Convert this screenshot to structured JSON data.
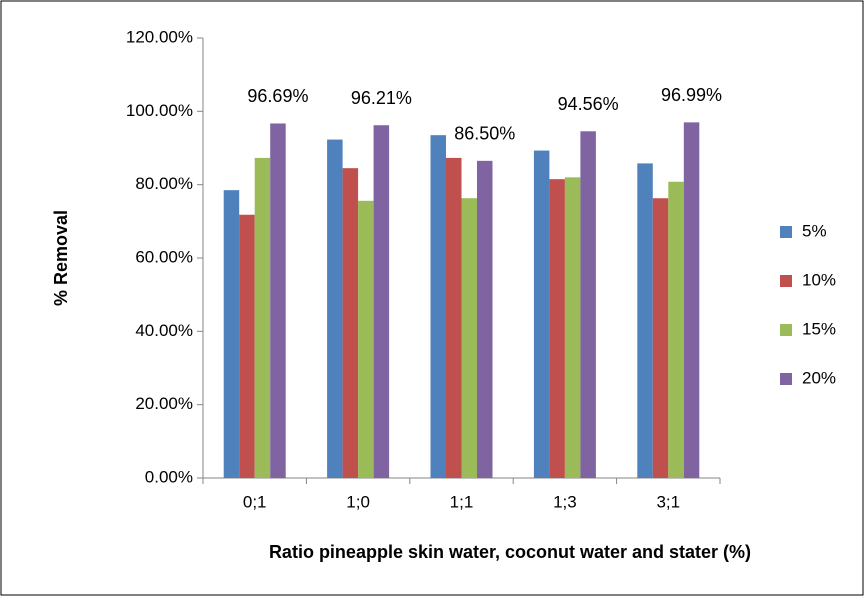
{
  "chart_data": {
    "type": "bar",
    "x_label": "Ratio pineapple skin water, coconut water and stater  (%)",
    "y_label": "% Removal",
    "categories": [
      "0;1",
      "1;0",
      "1;1",
      "1;3",
      "3;1"
    ],
    "series": [
      {
        "name": "5%",
        "color": "#4f81bd",
        "values": [
          78.5,
          92.3,
          93.5,
          89.3,
          85.8
        ]
      },
      {
        "name": "10%",
        "color": "#c0504d",
        "values": [
          71.8,
          84.5,
          87.3,
          81.5,
          76.3
        ]
      },
      {
        "name": "15%",
        "color": "#9bbb59",
        "values": [
          87.3,
          75.6,
          76.3,
          82.0,
          80.8
        ]
      },
      {
        "name": "20%",
        "color": "#8064a2",
        "values": [
          96.69,
          96.21,
          86.5,
          94.56,
          96.99
        ],
        "value_labels": [
          "96.69%",
          "96.21%",
          "86.50%",
          "94.56%",
          "96.99%"
        ]
      }
    ],
    "ylim": [
      0,
      120
    ],
    "yticks": [
      {
        "value": 0,
        "label": "0.00%"
      },
      {
        "value": 20,
        "label": "20.00%"
      },
      {
        "value": 40,
        "label": "40.00%"
      },
      {
        "value": 60,
        "label": "60.00%"
      },
      {
        "value": 80,
        "label": "80.00%"
      },
      {
        "value": 100,
        "label": "100.00%"
      },
      {
        "value": 120,
        "label": "120.00%"
      }
    ],
    "grid": false,
    "legend": "right"
  }
}
